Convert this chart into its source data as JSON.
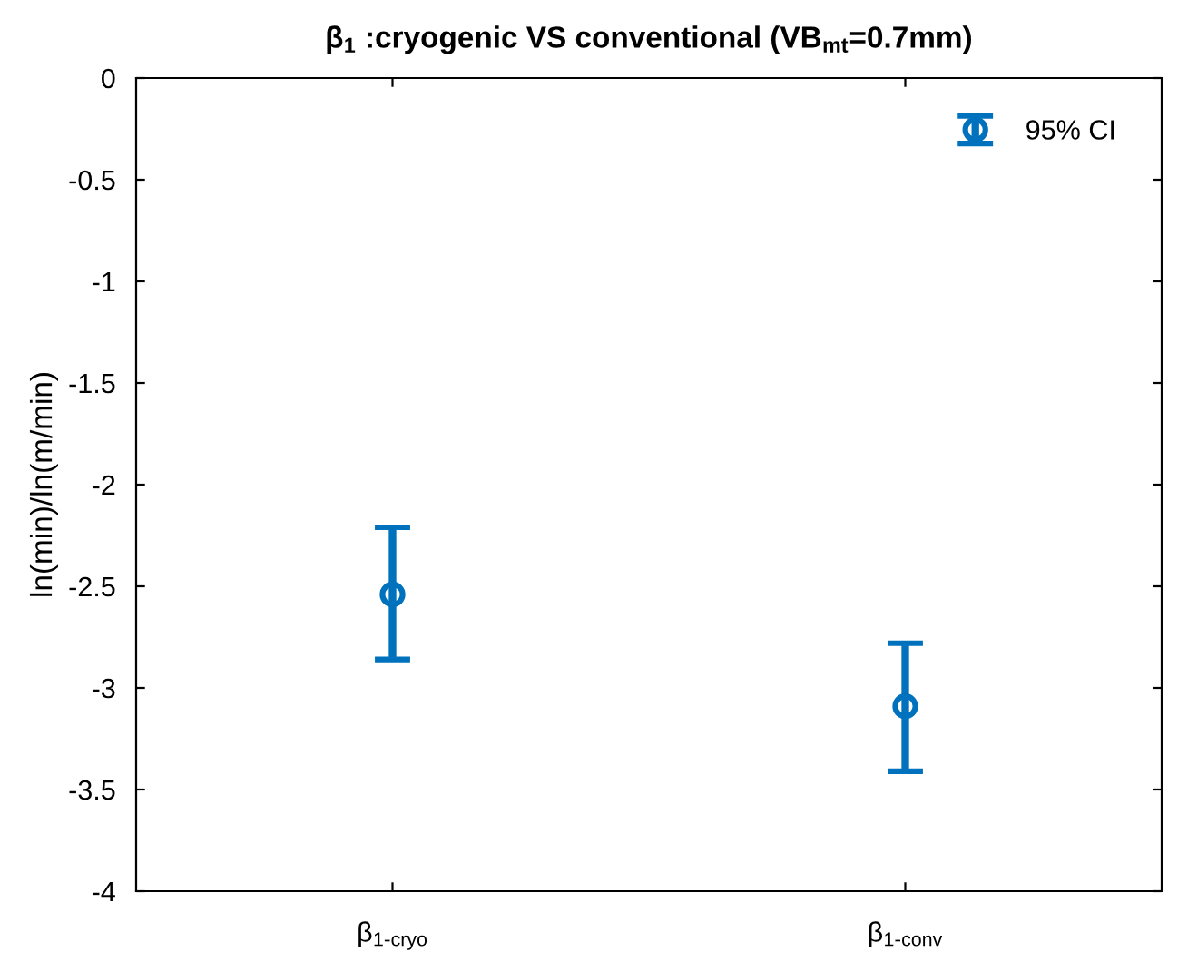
{
  "chart_data": {
    "type": "scatter",
    "title": "β$_{1}$ :cryogenic VS conventional (VB$_{mt}$=0.7mm)",
    "ylabel": "ln(min)/ln(m/min)",
    "categories": [
      "β$_{1-cryo}$",
      "β$_{1-conv}$"
    ],
    "series": [
      {
        "name": "95% CI",
        "color": "#0072bd",
        "values": [
          -2.54,
          -3.09
        ],
        "errors": [
          [
            -2.86,
            -2.21
          ],
          [
            -3.41,
            -2.78
          ]
        ]
      }
    ],
    "ylim": [
      -4,
      0
    ],
    "yticks": [
      -4,
      -3.5,
      -3,
      -2.5,
      -2,
      -1.5,
      -1,
      -0.5,
      0
    ],
    "marker": "circle",
    "legend": "top right",
    "grid": false
  }
}
